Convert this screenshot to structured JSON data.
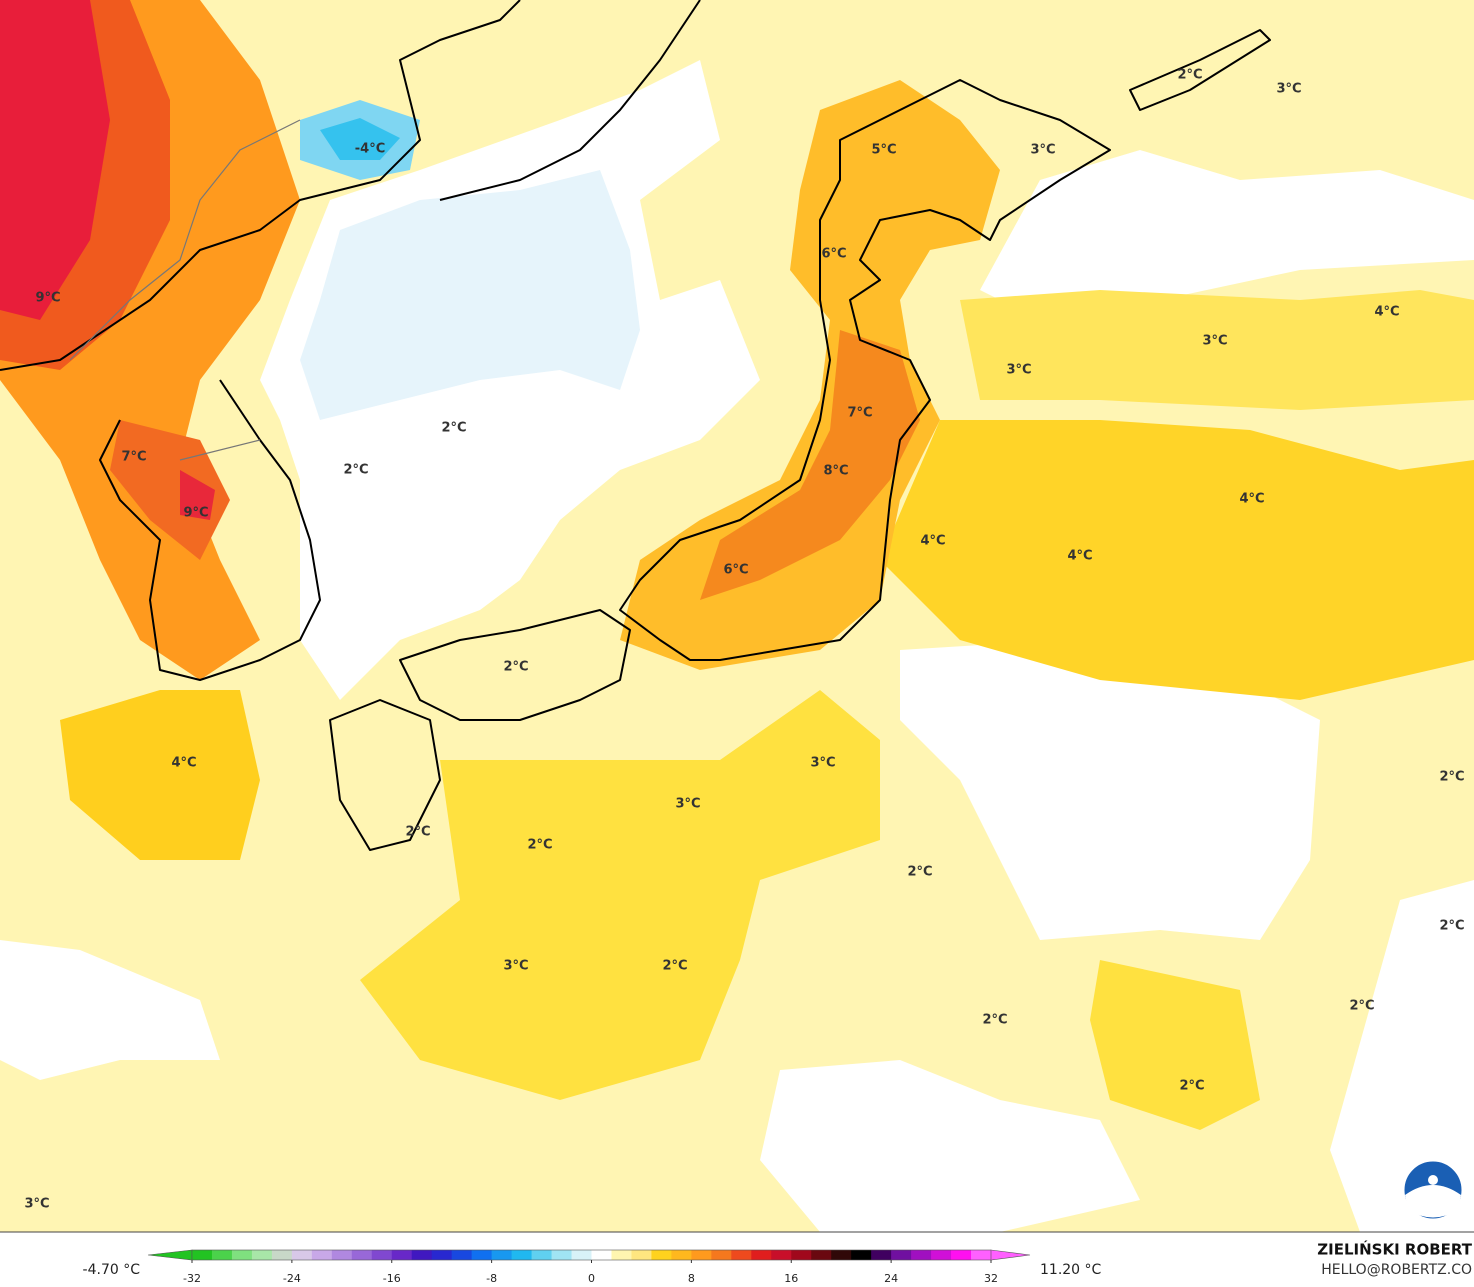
{
  "map": {
    "labels": [
      "2°C",
      "3°C",
      "-4°C",
      "5°C",
      "3°C",
      "6°C",
      "9°C",
      "4°C",
      "3°C",
      "3°C",
      "7°C",
      "2°C",
      "7°C",
      "8°C",
      "2°C",
      "4°C",
      "9°C",
      "4°C",
      "4°C",
      "6°C",
      "2°C",
      "4°C",
      "3°C",
      "2°C",
      "3°C",
      "2°C",
      "2°C",
      "2°C",
      "2°C",
      "3°C",
      "2°C",
      "2°C",
      "2°C",
      "2°C",
      "3°C"
    ]
  },
  "colorbar": {
    "min_label": "-4.70 °C",
    "max_label": "11.20 °C",
    "range": [
      -32,
      32
    ],
    "ticks": [
      -32,
      -24,
      -16,
      -8,
      0,
      8,
      16,
      24,
      32
    ],
    "colors": [
      "#22c322",
      "#4bd24b",
      "#7fe07f",
      "#a8e6a8",
      "#c8d8c8",
      "#d8c8e8",
      "#c8a8e8",
      "#b088e0",
      "#9868d8",
      "#8048d0",
      "#6828c8",
      "#4018c0",
      "#2828d0",
      "#1848e0",
      "#1070f0",
      "#1898f0",
      "#20b8f0",
      "#60d0f0",
      "#a0e4f4",
      "#d8f2f8",
      "#ffffff",
      "#fff5b0",
      "#ffe680",
      "#ffd21e",
      "#ffb81e",
      "#ff9a1e",
      "#f5781e",
      "#ee4a1e",
      "#e01e1e",
      "#c80f2a",
      "#a0081c",
      "#6a0810",
      "#300808",
      "#000000",
      "#400060",
      "#7010a0",
      "#a010c0",
      "#d010d8",
      "#ff10f0",
      "#ff60ff"
    ]
  },
  "credit": {
    "author": "ZIELIŃSKI ROBERT",
    "contact": "HELLO@ROBERTZ.CO"
  }
}
